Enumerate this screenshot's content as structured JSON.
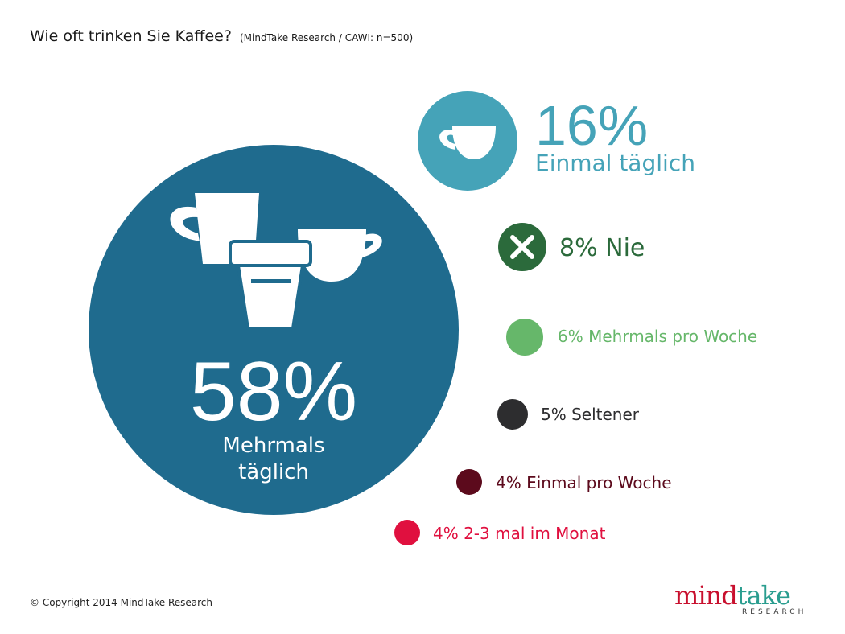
{
  "header": {
    "title": "Wie oft trinken Sie Kaffee?",
    "subtitle": "(MindTake Research / CAWI: n=500)"
  },
  "footer": {
    "copyright": "© Copyright 2014 MindTake Research",
    "logo_part1": "mind",
    "logo_part2": "take",
    "logo_sub": "RESEARCH"
  },
  "chart_data": {
    "type": "bubble",
    "unit": "%",
    "series": [
      {
        "label": "Mehrmals täglich",
        "value": 58,
        "color": "#1f6b8e",
        "icon": "coffee-cups-icon"
      },
      {
        "label": "Einmal täglich",
        "value": 16,
        "color": "#45a3b8",
        "icon": "cup-icon"
      },
      {
        "label": "Nie",
        "value": 8,
        "color": "#2b6a3b",
        "icon": "x-icon"
      },
      {
        "label": "Mehrmals pro Woche",
        "value": 6,
        "color": "#66b76a"
      },
      {
        "label": "Seltener",
        "value": 5,
        "color": "#2d2d2f"
      },
      {
        "label": "Einmal pro Woche",
        "value": 4,
        "color": "#5c0a1c"
      },
      {
        "label": "2-3 mal im Monat",
        "value": 4,
        "color": "#e0103f"
      }
    ]
  }
}
